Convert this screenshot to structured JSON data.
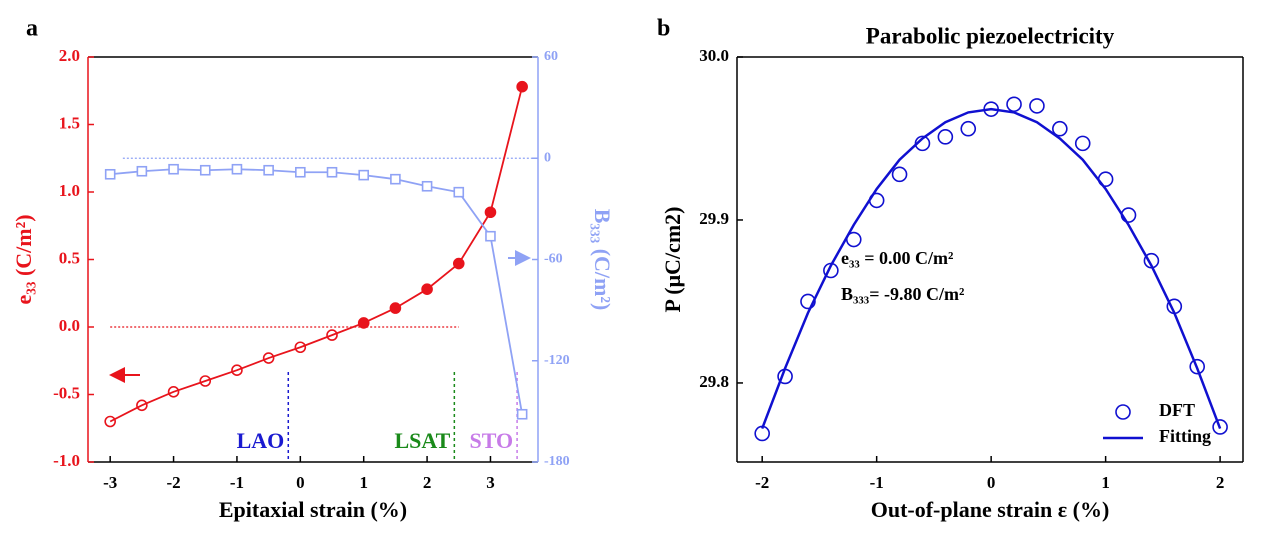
{
  "chart_data": [
    {
      "type": "line",
      "panel_label": "a",
      "xlabel": "Epitaxial strain (%)",
      "ylabel": "e₃₃ (C/m²)",
      "y2label": "B₃₃₃ (C/m²)",
      "x": [
        -3,
        -2.5,
        -2,
        -1.5,
        -1,
        -0.5,
        0,
        0.5,
        1,
        1.5,
        2,
        2.5,
        3,
        3.5
      ],
      "xlim": [
        -3.35,
        3.75
      ],
      "xticks": [
        -3,
        -2,
        -1,
        0,
        1,
        2,
        3
      ],
      "ylim": [
        -1.0,
        2.0
      ],
      "yticks": [
        {
          "value": -1.0,
          "label": "-1.0"
        },
        -0.5,
        {
          "value": 0.0,
          "label": "0.0"
        },
        0.5,
        {
          "value": 1.0,
          "label": "1.0"
        },
        1.5,
        {
          "value": 2.0,
          "label": "2.0"
        }
      ],
      "y2lim": [
        -180,
        60
      ],
      "y2ticks": [
        -180,
        -120,
        -60,
        0,
        60
      ],
      "series": [
        {
          "name": "e33",
          "color": "#e8141c",
          "marker": "circle",
          "axis": "y",
          "values": [
            -0.7,
            -0.58,
            -0.48,
            -0.4,
            -0.32,
            -0.23,
            -0.15,
            -0.06,
            0.03,
            0.14,
            0.28,
            0.47,
            0.85,
            1.78
          ]
        },
        {
          "name": "B333",
          "color": "#8fa2f5",
          "marker": "square",
          "axis": "y2",
          "values": [
            -9.5,
            -7.7,
            -6.5,
            -7.1,
            -6.5,
            -7.1,
            -8.3,
            -8.3,
            -10.0,
            -12.4,
            -16.6,
            -20.1,
            -46.2,
            -151.7
          ]
        }
      ],
      "zero_lines": [
        {
          "axis": "y",
          "value": 0,
          "xrange": [
            -3,
            2.5
          ],
          "color": "#e8141c"
        },
        {
          "axis": "y2",
          "value": 0,
          "xrange": [
            -2.8,
            3.75
          ],
          "color": "#8fa2f5"
        }
      ],
      "reference_lines": [
        {
          "label": "LAO",
          "x": -0.19,
          "color": "#1a1ad0"
        },
        {
          "label": "LSAT",
          "x": 2.43,
          "color": "#1a8a1a"
        },
        {
          "label": "STO",
          "x": 3.42,
          "color": "#c77be8"
        }
      ]
    },
    {
      "type": "scatter",
      "panel_label": "b",
      "title": "Parabolic piezoelectricity",
      "xlabel": "Out-of-plane strain ε (%)",
      "ylabel": "P (μC/cm2)",
      "x": [
        -2,
        -1.8,
        -1.6,
        -1.4,
        -1.2,
        -1,
        -0.8,
        -0.6,
        -0.4,
        -0.2,
        0,
        0.2,
        0.4,
        0.6,
        0.8,
        1,
        1.2,
        1.4,
        1.6,
        1.8,
        2
      ],
      "xlim": [
        -2.22,
        2.2
      ],
      "xticks": [
        -2,
        -1,
        0,
        1,
        2
      ],
      "ylim": [
        29.7515,
        30.0
      ],
      "yticks": [
        29.8,
        29.9,
        {
          "value": 30.0,
          "label": "30.0"
        }
      ],
      "series": [
        {
          "name": "DFT",
          "color": "#1010d0",
          "marker": "circle",
          "values": [
            29.769,
            29.804,
            29.85,
            29.869,
            29.888,
            29.912,
            29.928,
            29.947,
            29.951,
            29.956,
            29.968,
            29.971,
            29.97,
            29.956,
            29.947,
            29.925,
            29.903,
            29.875,
            29.847,
            29.81,
            29.773
          ]
        },
        {
          "name": "Fitting",
          "color": "#1010d0",
          "marker": "line",
          "values": [
            29.772,
            29.809,
            29.843,
            29.872,
            29.897,
            29.919,
            29.937,
            29.95,
            29.96,
            29.966,
            29.968,
            29.966,
            29.96,
            29.95,
            29.937,
            29.919,
            29.897,
            29.872,
            29.843,
            29.809,
            29.772
          ]
        }
      ],
      "annotations": [
        "e₃₃  =  0.00  C/m²",
        "B₃₃₃= -9.80 C/m²"
      ],
      "legend": "lower right"
    }
  ]
}
